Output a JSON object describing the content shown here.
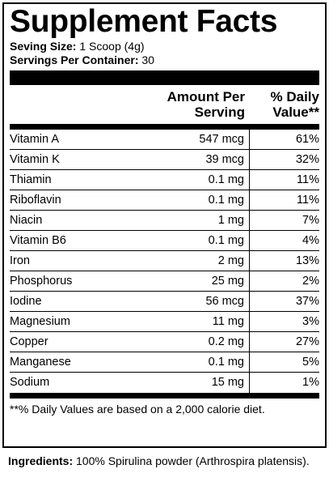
{
  "title": "Supplement Facts",
  "serving_size_label": "Seving Size:",
  "serving_size_value": "1 Scoop (4g)",
  "servings_per_container_label": "Servings Per Container:",
  "servings_per_container_value": "30",
  "columns": {
    "amount_line1": "Amount Per",
    "amount_line2": "Serving",
    "dv_line1": "% Daily",
    "dv_line2": "Value**"
  },
  "nutrients": [
    {
      "name": "Vitamin A",
      "amount": "547 mcg",
      "dv": "61%"
    },
    {
      "name": "Vitamin K",
      "amount": "39 mcg",
      "dv": "32%"
    },
    {
      "name": "Thiamin",
      "amount": "0.1 mg",
      "dv": "11%"
    },
    {
      "name": "Riboflavin",
      "amount": "0.1 mg",
      "dv": "11%"
    },
    {
      "name": "Niacin",
      "amount": "1 mg",
      "dv": "7%"
    },
    {
      "name": "Vitamin B6",
      "amount": "0.1 mg",
      "dv": "4%"
    },
    {
      "name": "Iron",
      "amount": "2 mg",
      "dv": "13%"
    },
    {
      "name": "Phosphorus",
      "amount": "25 mg",
      "dv": "2%"
    },
    {
      "name": "Iodine",
      "amount": "56 mcg",
      "dv": "37%"
    },
    {
      "name": "Magnesium",
      "amount": "11 mg",
      "dv": "3%"
    },
    {
      "name": "Copper",
      "amount": "0.2 mg",
      "dv": "27%"
    },
    {
      "name": "Manganese",
      "amount": "0.1 mg",
      "dv": "5%"
    },
    {
      "name": "Sodium",
      "amount": "15 mg",
      "dv": "1%"
    }
  ],
  "footnote": "**% Daily Values are based on a 2,000 calorie diet.",
  "ingredients_label": "Ingredients:",
  "ingredients_text": "100% Spirulina powder (Arthrospira platensis)."
}
